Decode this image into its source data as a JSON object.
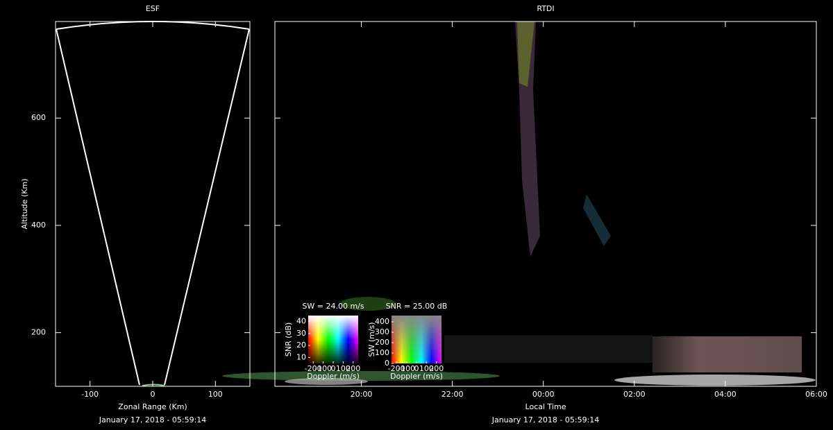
{
  "chart_data": [
    {
      "type": "fan",
      "title": "ESF",
      "xlabel": "Zonal Range (Km)",
      "ylabel": "Altitude (Km)",
      "timestamp": "January 17, 2018 - 05:59:14",
      "xlim": [
        -155,
        155
      ],
      "xticks": [
        -100,
        0,
        100
      ],
      "ylim": [
        100,
        780
      ],
      "yticks": [
        200,
        400,
        600
      ],
      "ytick_labels": true
    },
    {
      "type": "rtdi",
      "title": "RTDI",
      "xlabel": "Local Time",
      "timestamp": "January 17, 2018 - 05:59:14",
      "xlim": [
        18.1,
        30
      ],
      "xticks": [
        {
          "value": 20,
          "label": "20:00"
        },
        {
          "value": 22,
          "label": "22:00"
        },
        {
          "value": 24,
          "label": "00:00"
        },
        {
          "value": 26,
          "label": "02:00"
        },
        {
          "value": 28,
          "label": "04:00"
        },
        {
          "value": 30,
          "label": "06:00"
        }
      ],
      "ylim": [
        100,
        780
      ],
      "yticks": [
        200,
        400,
        600
      ],
      "ytick_labels": false
    },
    {
      "type": "colormap",
      "title": "SW = 24.00 m/s",
      "xlabel": "Doppler (m/s)",
      "ylabel": "SNR (dB)",
      "xlim": [
        -250,
        250
      ],
      "xticks": [
        -200,
        -100,
        0,
        100,
        200
      ],
      "ylim": [
        5,
        45
      ],
      "yticks": [
        10,
        20,
        30,
        40
      ],
      "ytick_labels": true
    },
    {
      "type": "colormap",
      "title": "SNR = 25.00 dB",
      "xlabel": "Doppler (m/s)",
      "ylabel": "SW (m/s)",
      "xlim": [
        -250,
        250
      ],
      "xticks": [
        -200,
        -100,
        0,
        100,
        200
      ],
      "ylim": [
        0,
        460
      ],
      "yticks": [
        0,
        100,
        200,
        300,
        400
      ],
      "ytick_labels": true
    }
  ]
}
